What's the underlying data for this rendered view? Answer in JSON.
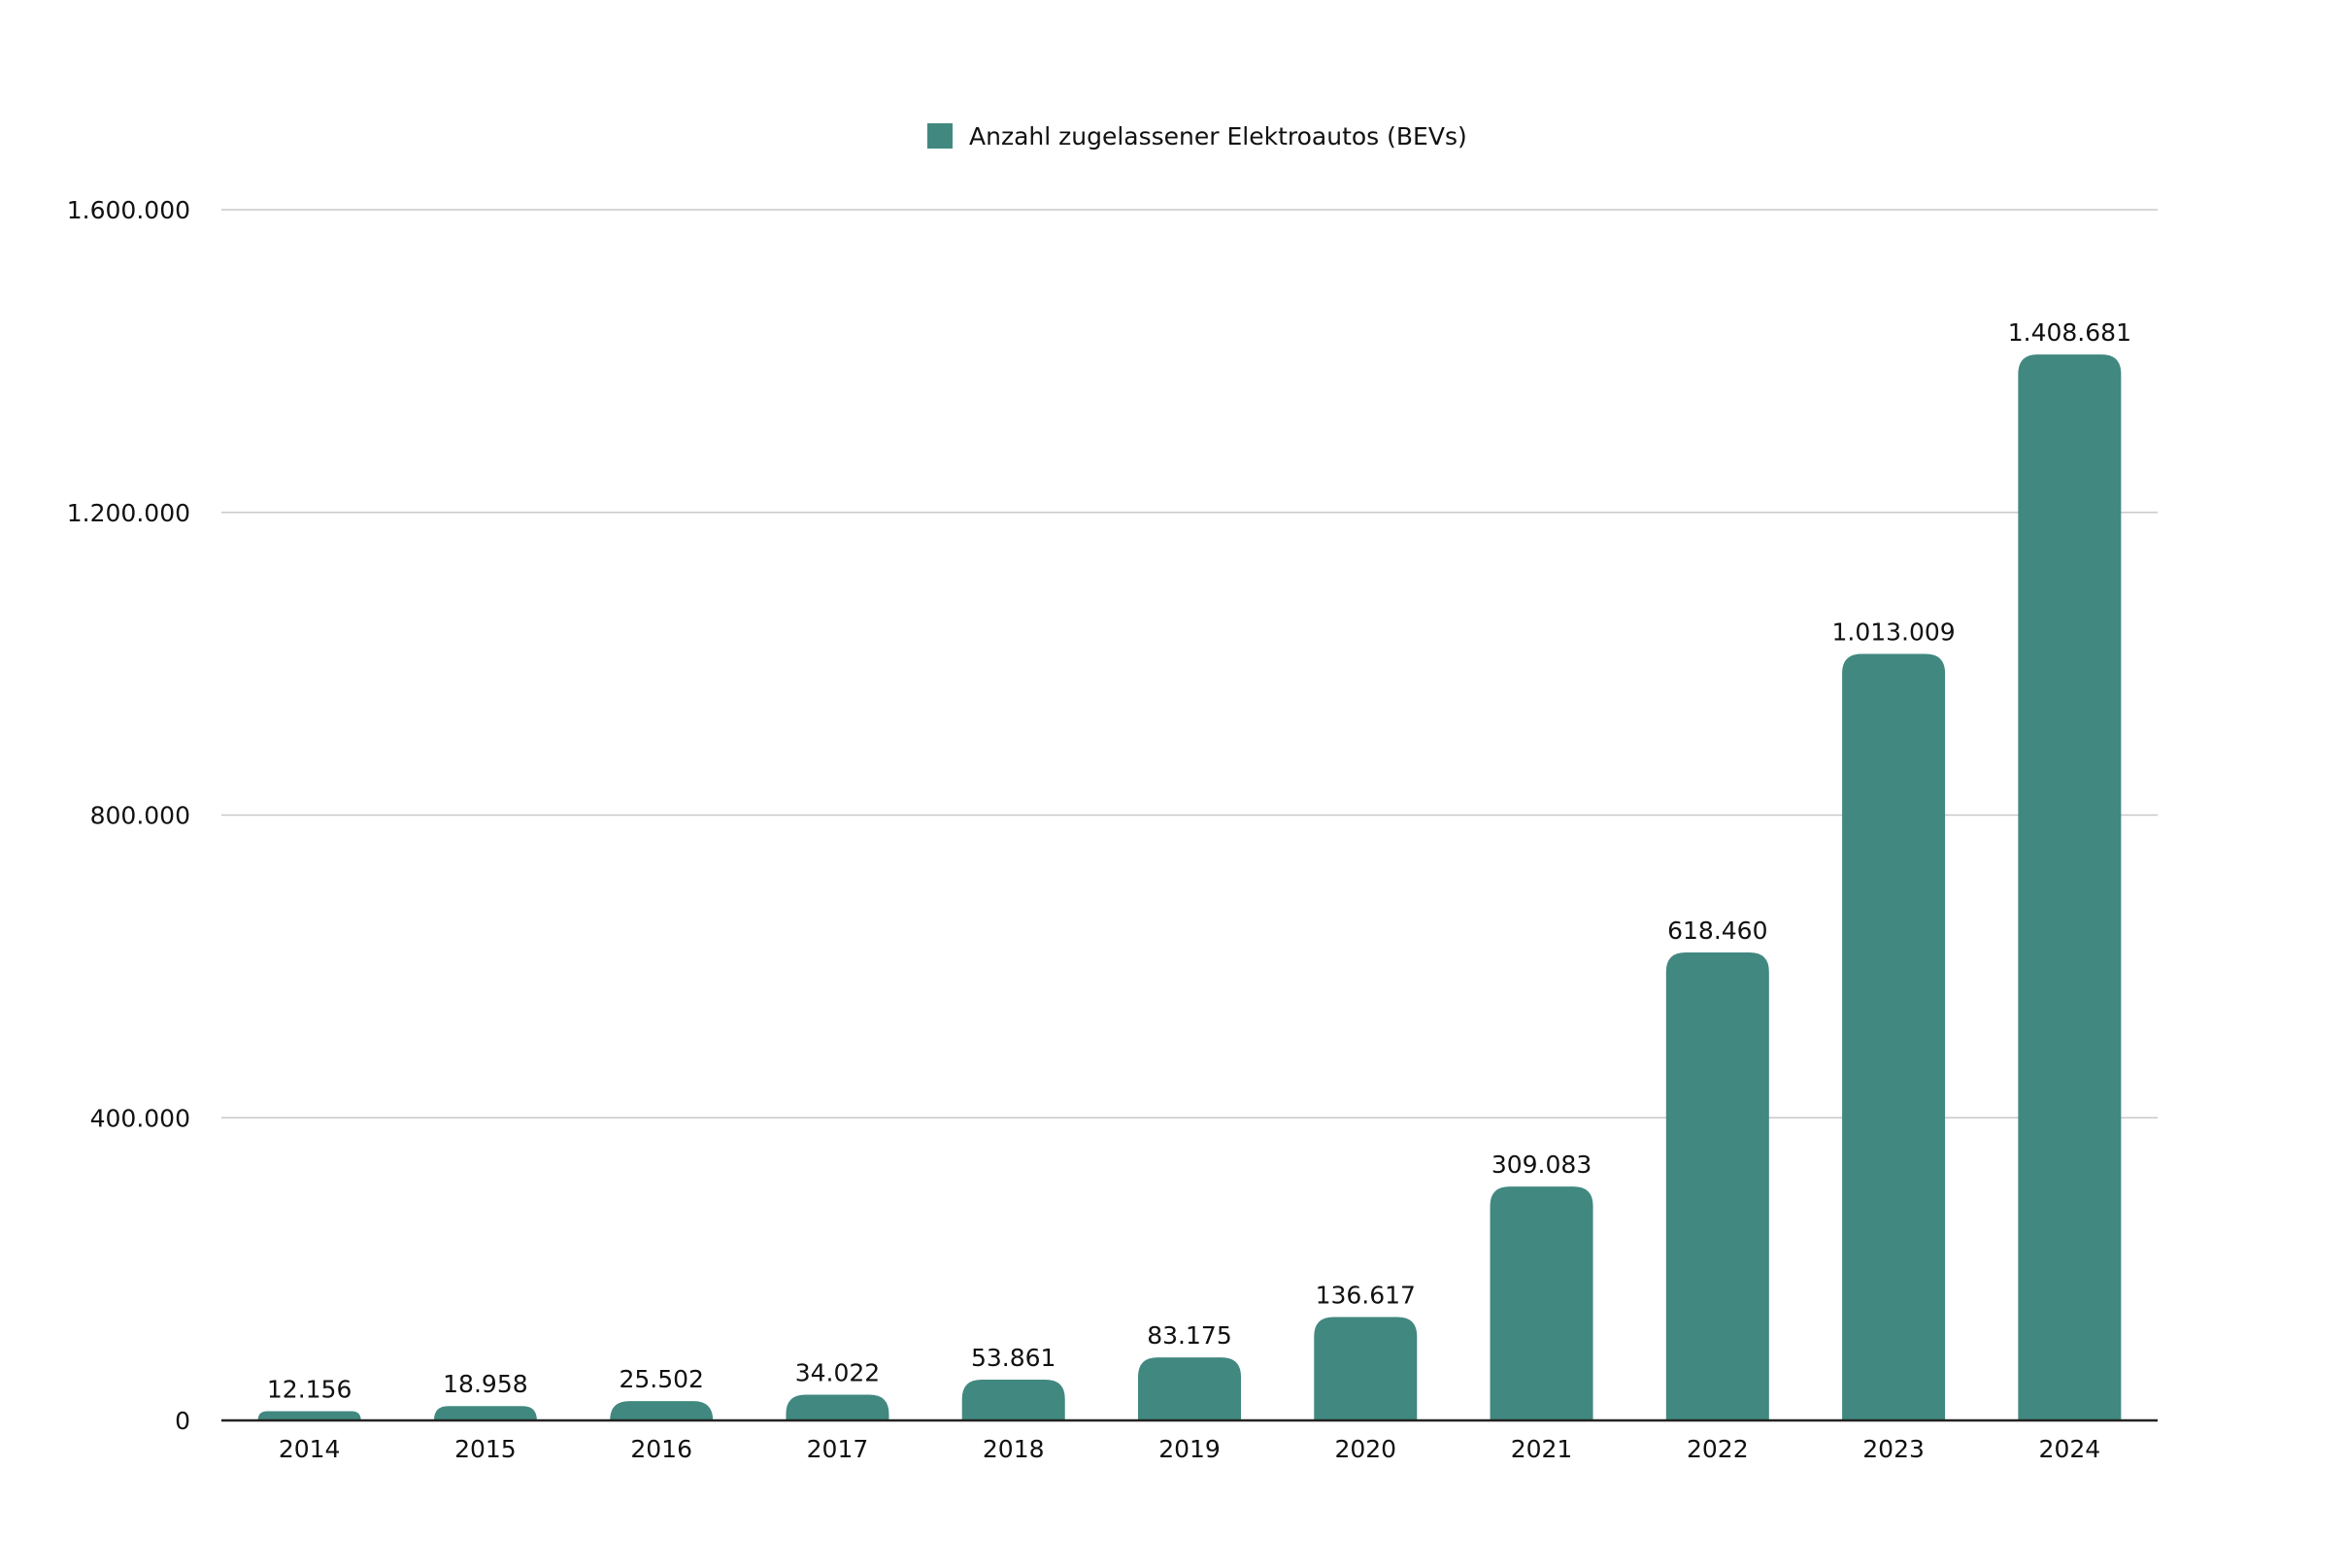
{
  "chart_data": {
    "type": "bar",
    "title": "",
    "xlabel": "",
    "ylabel": "",
    "categories": [
      "2014",
      "2015",
      "2016",
      "2017",
      "2018",
      "2019",
      "2020",
      "2021",
      "2022",
      "2023",
      "2024"
    ],
    "series": [
      {
        "name": "Anzahl zugelassener Elektroautos (BEVs)",
        "color": "#418880",
        "values": [
          12156,
          18958,
          25502,
          34022,
          53861,
          83175,
          136617,
          309083,
          618460,
          1013009,
          1408681
        ],
        "value_labels": [
          "12.156",
          "18.958",
          "25.502",
          "34.022",
          "53.861",
          "83.175",
          "136.617",
          "309.083",
          "618.460",
          "1.013.009",
          "1.408.681"
        ]
      }
    ],
    "ylim": [
      0,
      1600000
    ],
    "yticks": [
      0,
      400000,
      800000,
      1200000,
      1600000
    ],
    "ytick_labels": [
      "0",
      "400.000",
      "800.000",
      "1.200.000",
      "1.600.000"
    ],
    "grid": true,
    "legend": {
      "position": "top-center"
    }
  }
}
